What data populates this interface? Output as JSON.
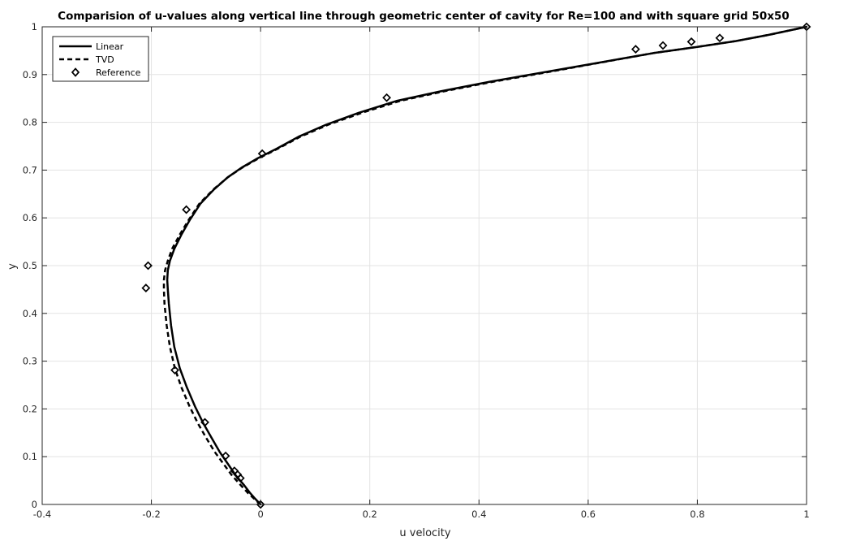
{
  "chart_data": {
    "type": "line",
    "title": "Comparision of u-values along vertical line through geometric center of cavity for Re=100 and with square grid 50x50",
    "xlabel": "u velocity",
    "ylabel": "y",
    "xlim": [
      -0.4,
      1
    ],
    "ylim": [
      0,
      1
    ],
    "xticks": [
      "-0.4",
      "-0.2",
      "0",
      "0.2",
      "0.4",
      "0.6",
      "0.8",
      "1"
    ],
    "yticks": [
      "0",
      "0.1",
      "0.2",
      "0.3",
      "0.4",
      "0.5",
      "0.6",
      "0.7",
      "0.8",
      "0.9",
      "1"
    ],
    "grid": true,
    "legend_position": "top-left",
    "series": [
      {
        "name": "Linear",
        "style": "solid",
        "color": "#000000",
        "x": [
          0,
          -0.01,
          -0.02,
          -0.03,
          -0.045,
          -0.06,
          -0.075,
          -0.09,
          -0.105,
          -0.12,
          -0.135,
          -0.148,
          -0.158,
          -0.164,
          -0.168,
          -0.17,
          -0.171,
          -0.17,
          -0.166,
          -0.158,
          -0.145,
          -0.13,
          -0.11,
          -0.085,
          -0.06,
          -0.035,
          -0.005,
          0.03,
          0.07,
          0.12,
          0.18,
          0.25,
          0.33,
          0.42,
          0.52,
          0.62,
          0.72,
          0.8,
          0.87,
          0.93,
          1.0
        ],
        "y": [
          0,
          0.012,
          0.025,
          0.04,
          0.06,
          0.085,
          0.11,
          0.14,
          0.17,
          0.205,
          0.245,
          0.285,
          0.33,
          0.375,
          0.42,
          0.45,
          0.47,
          0.49,
          0.51,
          0.535,
          0.565,
          0.595,
          0.63,
          0.66,
          0.685,
          0.705,
          0.725,
          0.745,
          0.77,
          0.795,
          0.82,
          0.845,
          0.865,
          0.885,
          0.905,
          0.925,
          0.945,
          0.958,
          0.97,
          0.983,
          1.0
        ]
      },
      {
        "name": "TVD",
        "style": "dashed",
        "color": "#000000",
        "x": [
          0,
          -0.012,
          -0.024,
          -0.036,
          -0.052,
          -0.068,
          -0.084,
          -0.1,
          -0.115,
          -0.13,
          -0.145,
          -0.157,
          -0.166,
          -0.172,
          -0.176,
          -0.177,
          -0.177,
          -0.175,
          -0.17,
          -0.162,
          -0.148,
          -0.132,
          -0.112,
          -0.086,
          -0.06,
          -0.034,
          -0.003,
          0.032,
          0.073,
          0.124,
          0.186,
          0.256,
          0.336,
          0.426,
          0.525,
          0.622,
          0.72,
          0.8,
          0.87,
          0.93,
          1.0
        ],
        "y": [
          0,
          0.012,
          0.025,
          0.04,
          0.06,
          0.085,
          0.11,
          0.14,
          0.17,
          0.205,
          0.245,
          0.285,
          0.33,
          0.375,
          0.42,
          0.45,
          0.47,
          0.49,
          0.51,
          0.535,
          0.565,
          0.595,
          0.63,
          0.66,
          0.685,
          0.705,
          0.725,
          0.745,
          0.77,
          0.795,
          0.82,
          0.845,
          0.865,
          0.885,
          0.905,
          0.925,
          0.945,
          0.958,
          0.97,
          0.983,
          1.0
        ]
      },
      {
        "name": "Reference",
        "style": "markers",
        "marker": "diamond",
        "color": "#000000",
        "x": [
          0,
          -0.037,
          -0.042,
          -0.048,
          -0.064,
          -0.102,
          -0.157,
          -0.21,
          -0.206,
          -0.136,
          0.003,
          0.231,
          0.687,
          0.737,
          0.789,
          0.841,
          1.0
        ],
        "y": [
          0,
          0.055,
          0.0625,
          0.0703,
          0.1016,
          0.1719,
          0.2813,
          0.4531,
          0.5,
          0.6172,
          0.7344,
          0.8516,
          0.9531,
          0.9609,
          0.9688,
          0.9766,
          1.0
        ]
      }
    ]
  }
}
